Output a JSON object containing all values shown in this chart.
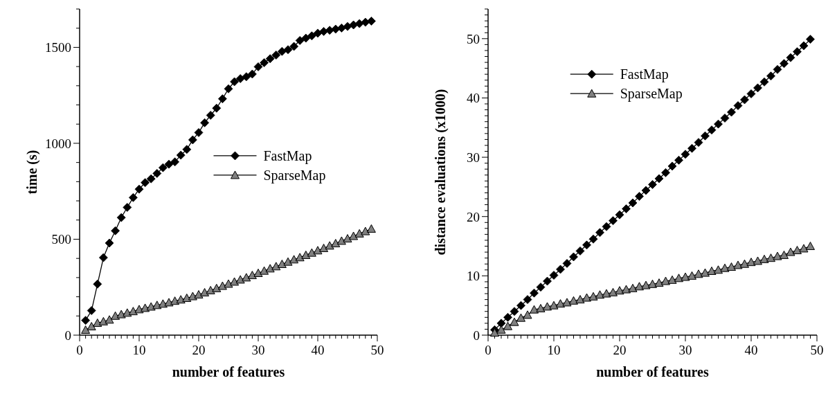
{
  "chart_data": [
    {
      "type": "line",
      "xlabel": "number of features",
      "ylabel": "time (s)",
      "xlim": [
        0,
        50
      ],
      "ylim": [
        0,
        1700
      ],
      "xticks": [
        0,
        {
          "value": 1,
          "label": null
        },
        {
          "value": 2,
          "label": null
        },
        {
          "value": 3,
          "label": null
        },
        {
          "value": 4,
          "label": null
        },
        {
          "value": 5,
          "label": null
        },
        {
          "value": 6,
          "label": null
        },
        {
          "value": 7,
          "label": null
        },
        {
          "value": 8,
          "label": null
        },
        {
          "value": 9,
          "label": null
        },
        10,
        {
          "value": 11,
          "label": null
        },
        {
          "value": 12,
          "label": null
        },
        {
          "value": 13,
          "label": null
        },
        {
          "value": 14,
          "label": null
        },
        {
          "value": 15,
          "label": null
        },
        {
          "value": 16,
          "label": null
        },
        {
          "value": 17,
          "label": null
        },
        {
          "value": 18,
          "label": null
        },
        {
          "value": 19,
          "label": null
        },
        20,
        {
          "value": 21,
          "label": null
        },
        {
          "value": 22,
          "label": null
        },
        {
          "value": 23,
          "label": null
        },
        {
          "value": 24,
          "label": null
        },
        {
          "value": 25,
          "label": null
        },
        {
          "value": 26,
          "label": null
        },
        {
          "value": 27,
          "label": null
        },
        {
          "value": 28,
          "label": null
        },
        {
          "value": 29,
          "label": null
        },
        30,
        {
          "value": 31,
          "label": null
        },
        {
          "value": 32,
          "label": null
        },
        {
          "value": 33,
          "label": null
        },
        {
          "value": 34,
          "label": null
        },
        {
          "value": 35,
          "label": null
        },
        {
          "value": 36,
          "label": null
        },
        {
          "value": 37,
          "label": null
        },
        {
          "value": 38,
          "label": null
        },
        {
          "value": 39,
          "label": null
        },
        40,
        {
          "value": 41,
          "label": null
        },
        {
          "value": 42,
          "label": null
        },
        {
          "value": 43,
          "label": null
        },
        {
          "value": 44,
          "label": null
        },
        {
          "value": 45,
          "label": null
        },
        {
          "value": 46,
          "label": null
        },
        {
          "value": 47,
          "label": null
        },
        {
          "value": 48,
          "label": null
        },
        {
          "value": 49,
          "label": null
        },
        50
      ],
      "yticks": [
        0,
        {
          "value": 100,
          "label": null
        },
        {
          "value": 200,
          "label": null
        },
        {
          "value": 300,
          "label": null
        },
        {
          "value": 400,
          "label": null
        },
        500,
        {
          "value": 600,
          "label": null
        },
        {
          "value": 700,
          "label": null
        },
        {
          "value": 800,
          "label": null
        },
        {
          "value": 900,
          "label": null
        },
        1000,
        {
          "value": 1100,
          "label": null
        },
        {
          "value": 1200,
          "label": null
        },
        {
          "value": 1300,
          "label": null
        },
        {
          "value": 1400,
          "label": null
        },
        1500,
        {
          "value": 1600,
          "label": null
        },
        {
          "value": 1700,
          "label": null
        }
      ],
      "x": [
        1,
        2,
        3,
        4,
        5,
        6,
        7,
        8,
        9,
        10,
        11,
        12,
        13,
        14,
        15,
        16,
        17,
        18,
        19,
        20,
        21,
        22,
        23,
        24,
        25,
        26,
        27,
        28,
        29,
        30,
        31,
        32,
        33,
        34,
        35,
        36,
        37,
        38,
        39,
        40,
        41,
        42,
        43,
        44,
        45,
        46,
        47,
        48,
        49
      ],
      "legend": "center",
      "grid": false,
      "line_style": "solid",
      "series": [
        {
          "name": "FastMap",
          "color": "#000000",
          "marker": "diamond",
          "values": [
            77,
            128,
            266,
            404,
            480,
            544,
            613,
            666,
            717,
            761,
            795,
            815,
            843,
            873,
            891,
            903,
            938,
            968,
            1018,
            1056,
            1107,
            1146,
            1183,
            1232,
            1284,
            1321,
            1337,
            1347,
            1361,
            1399,
            1420,
            1441,
            1460,
            1479,
            1488,
            1505,
            1536,
            1548,
            1560,
            1574,
            1583,
            1589,
            1595,
            1601,
            1609,
            1617,
            1624,
            1631,
            1637
          ]
        },
        {
          "name": "SparseMap",
          "color": "#808080",
          "marker": "triangle",
          "values": [
            27,
            45,
            63,
            71,
            80,
            100,
            108,
            116,
            124,
            134,
            141,
            148,
            156,
            163,
            170,
            178,
            185,
            193,
            202,
            211,
            222,
            233,
            244,
            256,
            267,
            278,
            289,
            300,
            312,
            323,
            335,
            347,
            358,
            370,
            382,
            394,
            405,
            417,
            429,
            441,
            453,
            466,
            478,
            491,
            503,
            516,
            529,
            541,
            554
          ]
        }
      ]
    },
    {
      "type": "line",
      "xlabel": "number of features",
      "ylabel": "distance evaluations (x1000)",
      "xlim": [
        0,
        50
      ],
      "ylim": [
        0,
        55
      ],
      "xticks": [
        0,
        {
          "value": 1,
          "label": null
        },
        {
          "value": 2,
          "label": null
        },
        {
          "value": 3,
          "label": null
        },
        {
          "value": 4,
          "label": null
        },
        {
          "value": 5,
          "label": null
        },
        {
          "value": 6,
          "label": null
        },
        {
          "value": 7,
          "label": null
        },
        {
          "value": 8,
          "label": null
        },
        {
          "value": 9,
          "label": null
        },
        10,
        {
          "value": 11,
          "label": null
        },
        {
          "value": 12,
          "label": null
        },
        {
          "value": 13,
          "label": null
        },
        {
          "value": 14,
          "label": null
        },
        {
          "value": 15,
          "label": null
        },
        {
          "value": 16,
          "label": null
        },
        {
          "value": 17,
          "label": null
        },
        {
          "value": 18,
          "label": null
        },
        {
          "value": 19,
          "label": null
        },
        20,
        {
          "value": 21,
          "label": null
        },
        {
          "value": 22,
          "label": null
        },
        {
          "value": 23,
          "label": null
        },
        {
          "value": 24,
          "label": null
        },
        {
          "value": 25,
          "label": null
        },
        {
          "value": 26,
          "label": null
        },
        {
          "value": 27,
          "label": null
        },
        {
          "value": 28,
          "label": null
        },
        {
          "value": 29,
          "label": null
        },
        30,
        {
          "value": 31,
          "label": null
        },
        {
          "value": 32,
          "label": null
        },
        {
          "value": 33,
          "label": null
        },
        {
          "value": 34,
          "label": null
        },
        {
          "value": 35,
          "label": null
        },
        {
          "value": 36,
          "label": null
        },
        {
          "value": 37,
          "label": null
        },
        {
          "value": 38,
          "label": null
        },
        {
          "value": 39,
          "label": null
        },
        40,
        {
          "value": 41,
          "label": null
        },
        {
          "value": 42,
          "label": null
        },
        {
          "value": 43,
          "label": null
        },
        {
          "value": 44,
          "label": null
        },
        {
          "value": 45,
          "label": null
        },
        {
          "value": 46,
          "label": null
        },
        {
          "value": 47,
          "label": null
        },
        {
          "value": 48,
          "label": null
        },
        {
          "value": 49,
          "label": null
        },
        50
      ],
      "yticks": [
        0,
        {
          "value": 1,
          "label": null
        },
        {
          "value": 2,
          "label": null
        },
        {
          "value": 3,
          "label": null
        },
        {
          "value": 4,
          "label": null
        },
        {
          "value": 5,
          "label": null
        },
        {
          "value": 6,
          "label": null
        },
        {
          "value": 7,
          "label": null
        },
        {
          "value": 8,
          "label": null
        },
        {
          "value": 9,
          "label": null
        },
        10,
        {
          "value": 11,
          "label": null
        },
        {
          "value": 12,
          "label": null
        },
        {
          "value": 13,
          "label": null
        },
        {
          "value": 14,
          "label": null
        },
        {
          "value": 15,
          "label": null
        },
        {
          "value": 16,
          "label": null
        },
        {
          "value": 17,
          "label": null
        },
        {
          "value": 18,
          "label": null
        },
        {
          "value": 19,
          "label": null
        },
        20,
        {
          "value": 21,
          "label": null
        },
        {
          "value": 22,
          "label": null
        },
        {
          "value": 23,
          "label": null
        },
        {
          "value": 24,
          "label": null
        },
        {
          "value": 25,
          "label": null
        },
        {
          "value": 26,
          "label": null
        },
        {
          "value": 27,
          "label": null
        },
        {
          "value": 28,
          "label": null
        },
        {
          "value": 29,
          "label": null
        },
        30,
        {
          "value": 31,
          "label": null
        },
        {
          "value": 32,
          "label": null
        },
        {
          "value": 33,
          "label": null
        },
        {
          "value": 34,
          "label": null
        },
        {
          "value": 35,
          "label": null
        },
        {
          "value": 36,
          "label": null
        },
        {
          "value": 37,
          "label": null
        },
        {
          "value": 38,
          "label": null
        },
        {
          "value": 39,
          "label": null
        },
        40,
        {
          "value": 41,
          "label": null
        },
        {
          "value": 42,
          "label": null
        },
        {
          "value": 43,
          "label": null
        },
        {
          "value": 44,
          "label": null
        },
        {
          "value": 45,
          "label": null
        },
        {
          "value": 46,
          "label": null
        },
        {
          "value": 47,
          "label": null
        },
        {
          "value": 48,
          "label": null
        },
        {
          "value": 49,
          "label": null
        },
        50,
        {
          "value": 51,
          "label": null
        },
        {
          "value": 52,
          "label": null
        },
        {
          "value": 53,
          "label": null
        },
        {
          "value": 54,
          "label": null
        },
        {
          "value": 55,
          "label": null
        }
      ],
      "x": [
        1,
        2,
        3,
        4,
        5,
        6,
        7,
        8,
        9,
        10,
        11,
        12,
        13,
        14,
        15,
        16,
        17,
        18,
        19,
        20,
        21,
        22,
        23,
        24,
        25,
        26,
        27,
        28,
        29,
        30,
        31,
        32,
        33,
        34,
        35,
        36,
        37,
        38,
        39,
        40,
        41,
        42,
        43,
        44,
        45,
        46,
        47,
        48,
        49
      ],
      "legend": "top",
      "grid": false,
      "line_style": "solid",
      "series": [
        {
          "name": "FastMap",
          "color": "#000000",
          "marker": "diamond",
          "values": [
            0.9,
            2.0,
            3.0,
            4.0,
            5.0,
            6.0,
            7.1,
            8.1,
            9.1,
            10.1,
            11.1,
            12.1,
            13.2,
            14.2,
            15.2,
            16.2,
            17.3,
            18.3,
            19.3,
            20.3,
            21.3,
            22.3,
            23.4,
            24.4,
            25.4,
            26.4,
            27.4,
            28.5,
            29.5,
            30.5,
            31.5,
            32.5,
            33.6,
            34.6,
            35.6,
            36.6,
            37.6,
            38.7,
            39.7,
            40.7,
            41.7,
            42.7,
            43.7,
            44.8,
            45.8,
            46.8,
            47.8,
            48.8,
            49.9
          ]
        },
        {
          "name": "SparseMap",
          "color": "#808080",
          "marker": "triangle",
          "values": [
            0.4,
            0.9,
            1.5,
            2.2,
            2.9,
            3.4,
            4.3,
            4.5,
            4.8,
            5.0,
            5.3,
            5.5,
            5.8,
            6.0,
            6.3,
            6.5,
            6.8,
            7.0,
            7.2,
            7.5,
            7.7,
            7.9,
            8.2,
            8.4,
            8.6,
            8.8,
            9.1,
            9.3,
            9.6,
            9.8,
            10.0,
            10.3,
            10.5,
            10.8,
            11.0,
            11.3,
            11.5,
            11.8,
            12.0,
            12.3,
            12.5,
            12.8,
            13.0,
            13.3,
            13.5,
            14.0,
            14.3,
            14.6,
            15.0
          ]
        }
      ]
    }
  ]
}
